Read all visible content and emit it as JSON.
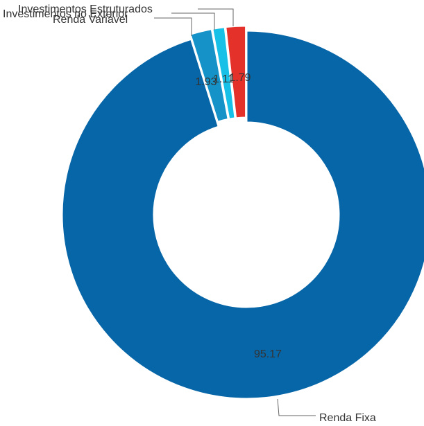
{
  "chart_data": {
    "type": "pie",
    "variant": "donut",
    "categories": [
      "Renda Fixa",
      "Renda Variável",
      "Investimentos no Exterior",
      "Investimentos Estruturados"
    ],
    "values": [
      95.17,
      1.93,
      1.11,
      1.79
    ],
    "value_labels": [
      "95.17",
      "1.93",
      "1.11",
      "1.79"
    ],
    "colors": [
      "#0766a8",
      "#1593c8",
      "#17c0e6",
      "#e4322b"
    ],
    "legend": "none",
    "title": ""
  }
}
